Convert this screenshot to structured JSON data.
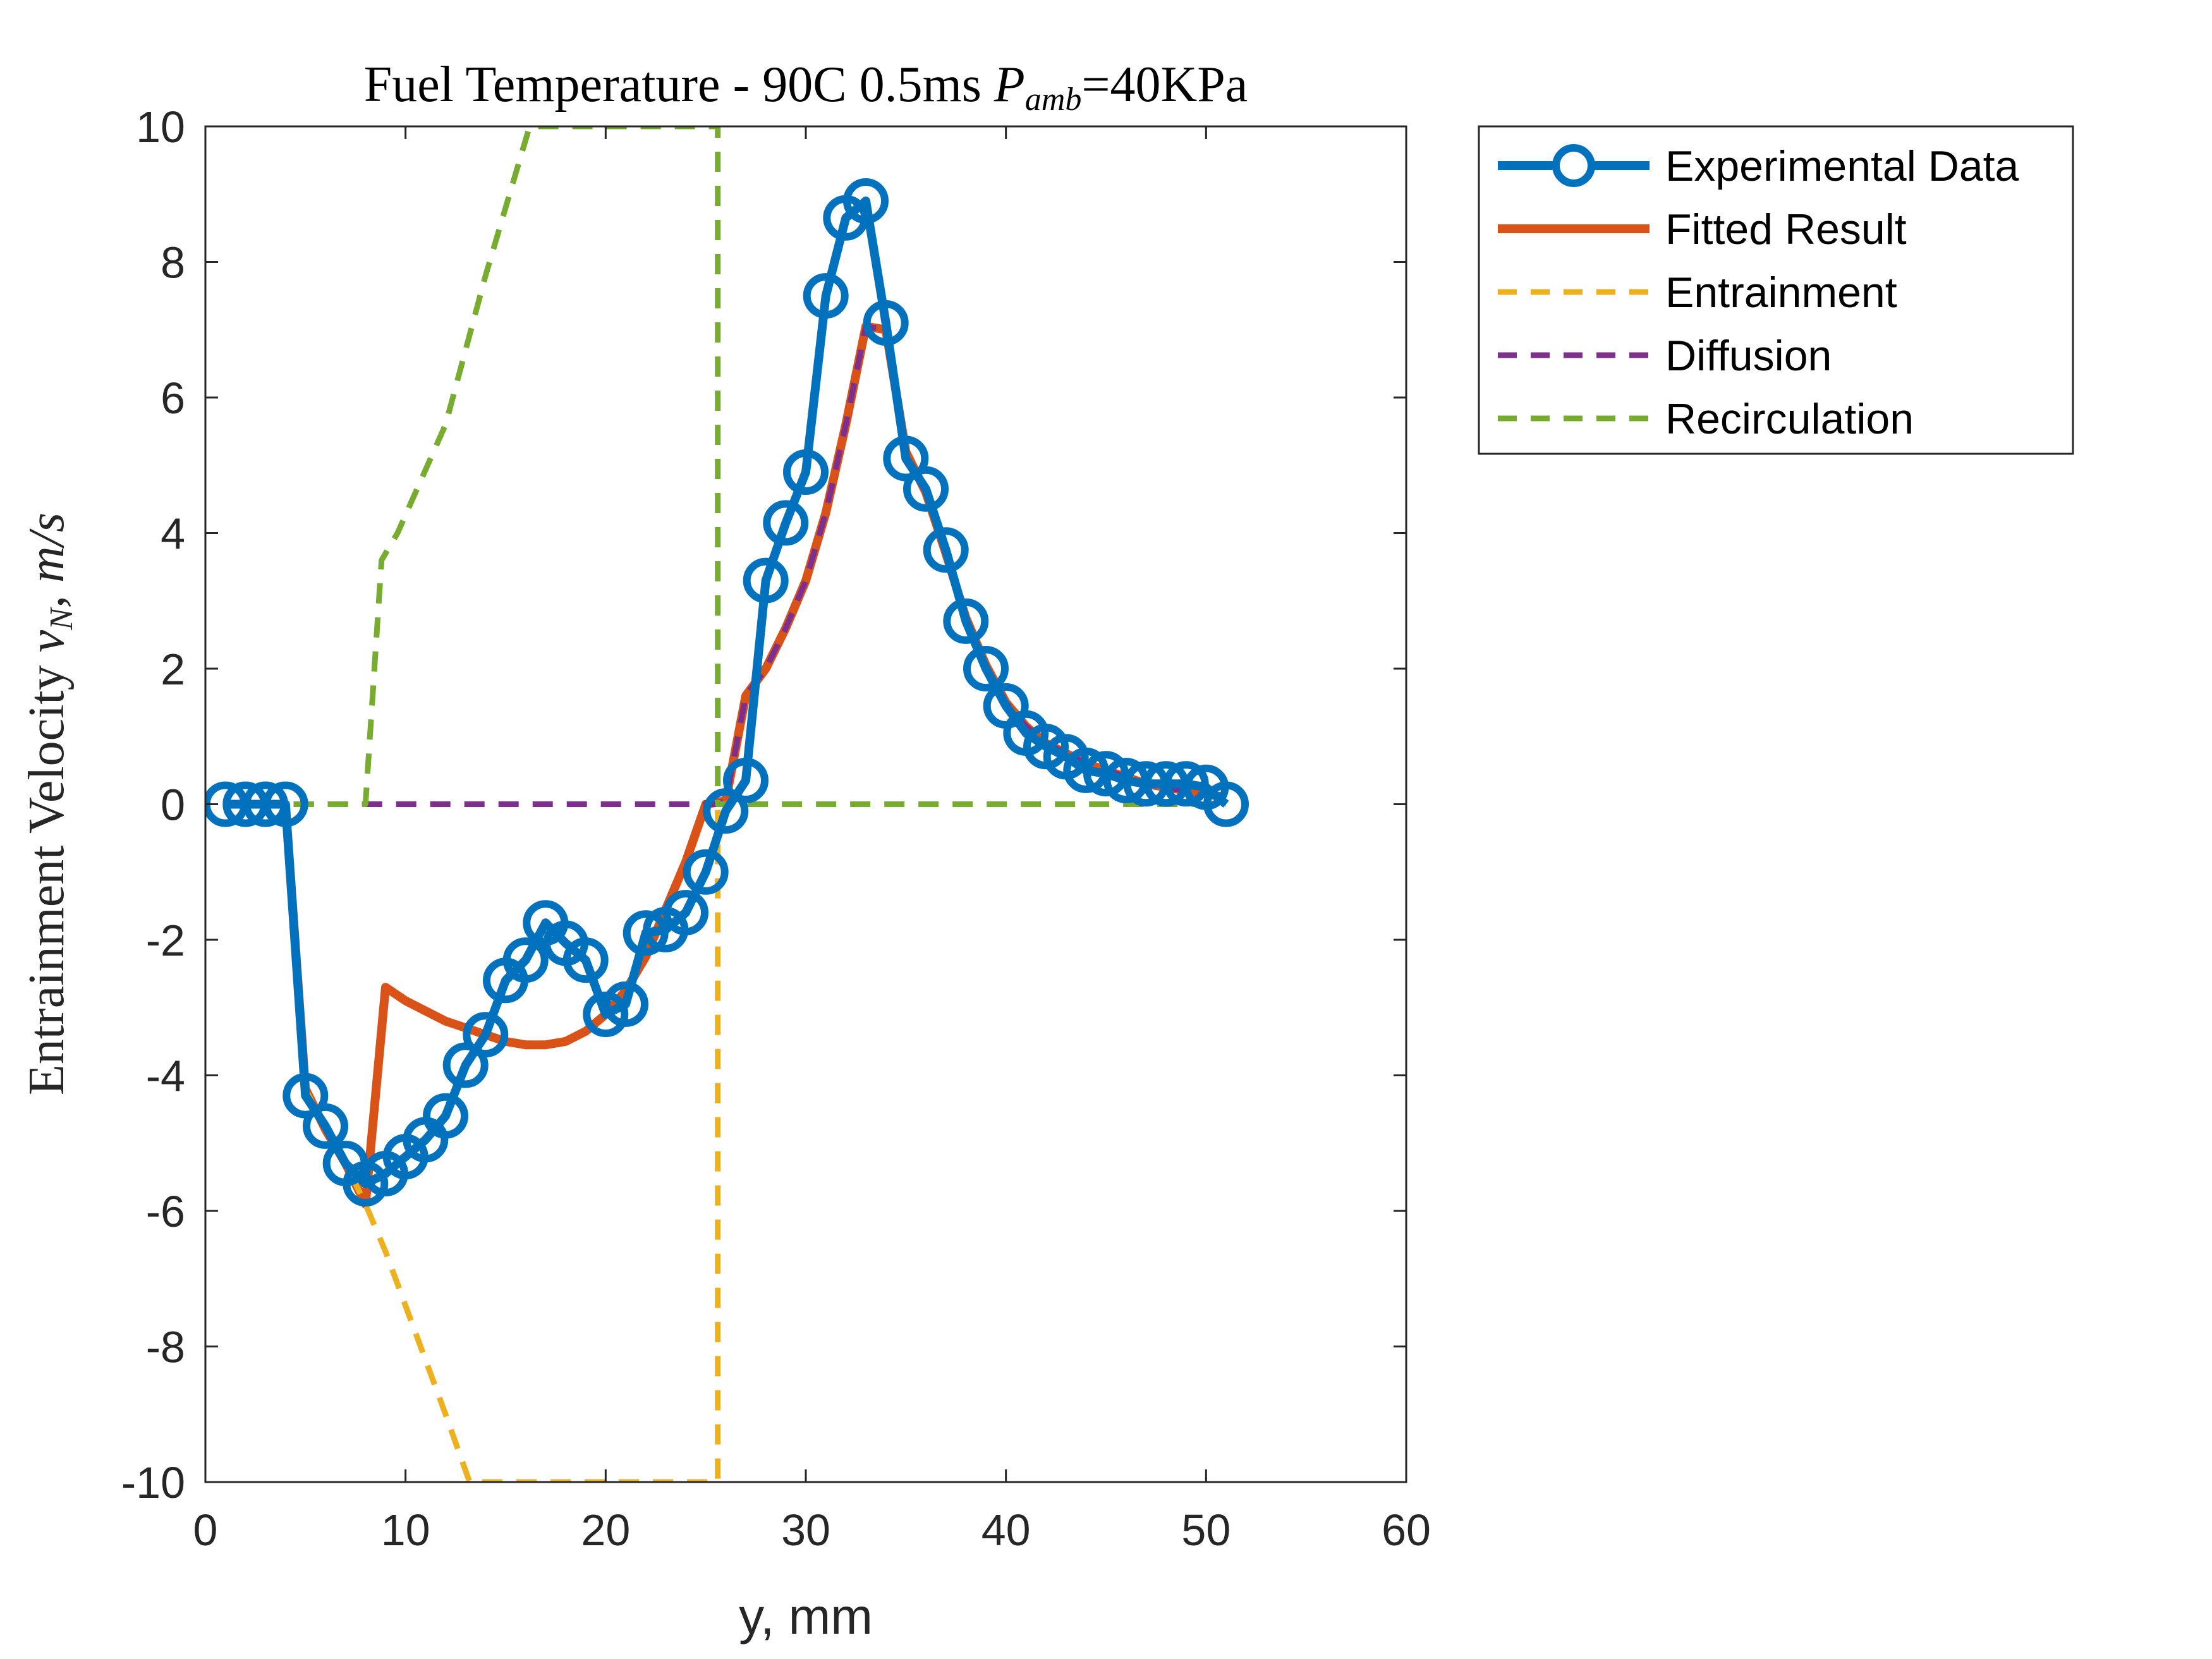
{
  "chart_data": {
    "type": "line",
    "title": "Fuel Temperature - 90C 0.5ms P_amb=40KPa",
    "title_parts": {
      "prefix": "Fuel Temperature - 90C 0.5ms ",
      "symbol": "P",
      "subscript": "amb",
      "suffix": "=40KPa"
    },
    "xlabel": "y, mm",
    "ylabel": "Entrainment Velocity v_N, m/s",
    "ylabel_parts": {
      "prefix": "Entrainment Velocity ",
      "symbol": "v",
      "subscript": "N",
      "suffix": ", m/s"
    },
    "xlim": [
      0,
      60
    ],
    "ylim": [
      -10,
      10
    ],
    "xticks": [
      0,
      10,
      20,
      30,
      40,
      50,
      60
    ],
    "yticks": [
      -10,
      -8,
      -6,
      -4,
      -2,
      0,
      2,
      4,
      6,
      8,
      10
    ],
    "grid": false,
    "legend_position": "outside-top-right",
    "series": [
      {
        "name": "Experimental Data",
        "color": "#0072BD",
        "style": "solid",
        "marker": "circle",
        "x": [
          1,
          2,
          3,
          4,
          5,
          6,
          7,
          8,
          9,
          10,
          11,
          12,
          13,
          14,
          15,
          16,
          17,
          18,
          19,
          20,
          21,
          22,
          23,
          24,
          25,
          26,
          27,
          28,
          29,
          30,
          31,
          32,
          33,
          34,
          35,
          36,
          37,
          38,
          39,
          40,
          41,
          42,
          43,
          44,
          45,
          46,
          47,
          48,
          49,
          50,
          51
        ],
        "y": [
          0,
          0,
          0,
          0,
          -4.3,
          -4.75,
          -5.3,
          -5.6,
          -5.45,
          -5.2,
          -4.95,
          -4.6,
          -3.85,
          -3.4,
          -2.6,
          -2.3,
          -1.75,
          -2.05,
          -2.3,
          -3.1,
          -2.95,
          -1.9,
          -1.85,
          -1.6,
          -1.0,
          -0.1,
          0.35,
          3.3,
          4.15,
          4.9,
          7.5,
          8.65,
          8.9,
          7.1,
          5.1,
          4.65,
          3.75,
          2.7,
          2.0,
          1.45,
          1.05,
          0.85,
          0.7,
          0.5,
          0.45,
          0.35,
          0.3,
          0.3,
          0.3,
          0.25,
          0.0
        ]
      },
      {
        "name": "Fitted Result",
        "color": "#D95319",
        "style": "solid",
        "x": [
          1,
          4,
          5,
          6,
          7,
          8,
          9,
          10,
          11,
          12,
          13,
          14,
          15,
          16,
          17,
          18,
          19,
          20,
          21,
          22,
          23,
          24,
          25,
          26,
          27,
          28,
          29,
          30,
          31,
          32,
          33,
          34,
          35,
          36,
          37,
          38,
          39,
          40,
          41,
          42,
          43,
          44,
          45,
          46,
          47,
          48,
          49,
          50,
          51
        ],
        "y": [
          0,
          0,
          -4.2,
          -4.8,
          -5.3,
          -5.9,
          -2.7,
          -2.9,
          -3.05,
          -3.2,
          -3.3,
          -3.4,
          -3.5,
          -3.55,
          -3.55,
          -3.5,
          -3.35,
          -3.1,
          -2.75,
          -2.25,
          -1.55,
          -0.85,
          0.0,
          0.05,
          1.6,
          2.0,
          2.6,
          3.3,
          4.3,
          5.6,
          7.05,
          7.0,
          5.2,
          4.6,
          3.7,
          2.75,
          2.05,
          1.5,
          1.15,
          0.9,
          0.75,
          0.6,
          0.5,
          0.4,
          0.3,
          0.25,
          0.2,
          0.15,
          0.1
        ]
      },
      {
        "name": "Entrainment",
        "color": "#EDB120",
        "style": "dashed",
        "x": [
          1,
          4,
          5,
          6,
          7,
          8,
          9,
          10,
          11,
          12,
          13.2,
          25.6,
          25.6,
          25.8,
          26
        ],
        "y": [
          0,
          0,
          -4.2,
          -4.8,
          -5.3,
          -5.9,
          -6.6,
          -7.4,
          -8.2,
          -9.0,
          -10,
          -10,
          0,
          -0.1,
          -0.2
        ]
      },
      {
        "name": "Diffusion",
        "color": "#7E2F8E",
        "style": "dashed",
        "x": [
          1,
          25.5,
          26,
          27,
          28,
          29,
          30,
          31,
          32,
          33,
          34,
          35,
          36,
          37,
          38,
          39,
          40,
          41,
          42,
          43,
          44,
          45,
          46,
          47,
          48,
          49,
          50,
          51
        ],
        "y": [
          0,
          0,
          0.05,
          1.6,
          2.0,
          2.6,
          3.3,
          4.3,
          5.6,
          7.05,
          7.0,
          5.2,
          4.6,
          3.7,
          2.75,
          2.05,
          1.5,
          1.15,
          0.9,
          0.75,
          0.6,
          0.5,
          0.4,
          0.3,
          0.25,
          0.2,
          0.15,
          0.1
        ]
      },
      {
        "name": "Recirculation",
        "color": "#77AC30",
        "style": "dashed",
        "x": [
          1,
          8,
          8.8,
          9.6,
          12,
          14,
          16.2,
          25.6,
          25.6,
          26,
          51
        ],
        "y": [
          0,
          0,
          3.6,
          4.0,
          5.6,
          7.8,
          10,
          10,
          0,
          0,
          0
        ]
      }
    ]
  }
}
